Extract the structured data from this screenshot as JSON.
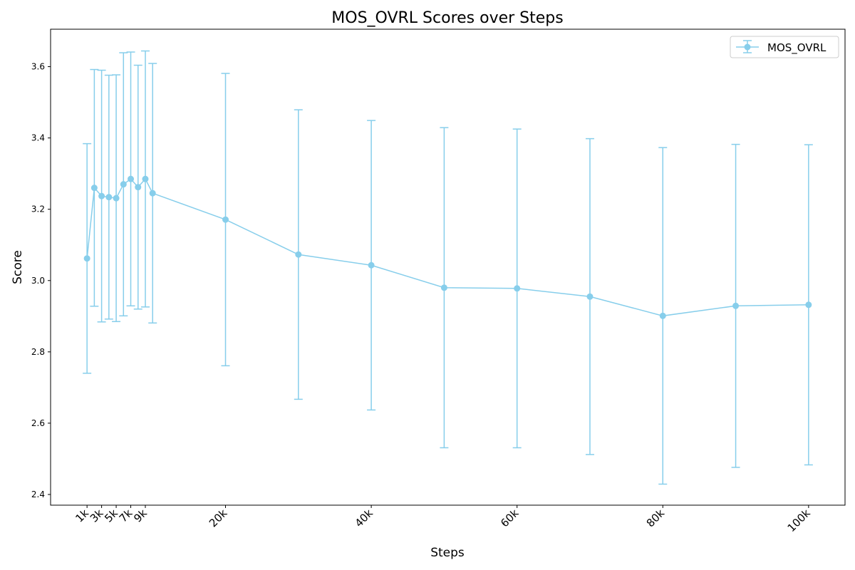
{
  "chart_data": {
    "type": "line",
    "title": "MOS_OVRL Scores over Steps",
    "xlabel": "Steps",
    "ylabel": "Score",
    "series_color": "#87ceeb",
    "series": [
      {
        "name": "MOS_OVRL",
        "points": [
          {
            "x": 1000,
            "y": 3.062,
            "err": 0.322
          },
          {
            "x": 2000,
            "y": 3.26,
            "err": 0.332
          },
          {
            "x": 3000,
            "y": 3.237,
            "err": 0.353
          },
          {
            "x": 4000,
            "y": 3.234,
            "err": 0.342
          },
          {
            "x": 5000,
            "y": 3.231,
            "err": 0.346
          },
          {
            "x": 6000,
            "y": 3.27,
            "err": 0.369
          },
          {
            "x": 7000,
            "y": 3.285,
            "err": 0.356
          },
          {
            "x": 8000,
            "y": 3.262,
            "err": 0.342
          },
          {
            "x": 9000,
            "y": 3.285,
            "err": 0.359
          },
          {
            "x": 10000,
            "y": 3.245,
            "err": 0.364
          },
          {
            "x": 20000,
            "y": 3.171,
            "err": 0.41
          },
          {
            "x": 30000,
            "y": 3.073,
            "err": 0.406
          },
          {
            "x": 40000,
            "y": 3.043,
            "err": 0.406
          },
          {
            "x": 50000,
            "y": 2.98,
            "err": 0.449
          },
          {
            "x": 60000,
            "y": 2.978,
            "err": 0.447
          },
          {
            "x": 70000,
            "y": 2.955,
            "err": 0.443
          },
          {
            "x": 80000,
            "y": 2.901,
            "err": 0.472
          },
          {
            "x": 90000,
            "y": 2.929,
            "err": 0.453
          },
          {
            "x": 100000,
            "y": 2.932,
            "err": 0.449
          }
        ]
      }
    ],
    "x_ticks": [
      {
        "value": 1000,
        "label": "1k"
      },
      {
        "value": 3000,
        "label": "3k"
      },
      {
        "value": 5000,
        "label": "5k"
      },
      {
        "value": 7000,
        "label": "7k"
      },
      {
        "value": 9000,
        "label": "9k"
      },
      {
        "value": 20000,
        "label": "20k"
      },
      {
        "value": 40000,
        "label": "40k"
      },
      {
        "value": 60000,
        "label": "60k"
      },
      {
        "value": 80000,
        "label": "80k"
      },
      {
        "value": 100000,
        "label": "100k"
      }
    ],
    "y_ticks": [
      {
        "value": 2.4,
        "label": "2.4"
      },
      {
        "value": 2.6,
        "label": "2.6"
      },
      {
        "value": 2.8,
        "label": "2.8"
      },
      {
        "value": 3.0,
        "label": "3.0"
      },
      {
        "value": 3.2,
        "label": "3.2"
      },
      {
        "value": 3.4,
        "label": "3.4"
      },
      {
        "value": 3.6,
        "label": "3.6"
      }
    ],
    "xlim": [
      -4000,
      105000
    ],
    "ylim": [
      2.37,
      3.705
    ],
    "grid": false,
    "legend_position": "top-right"
  }
}
